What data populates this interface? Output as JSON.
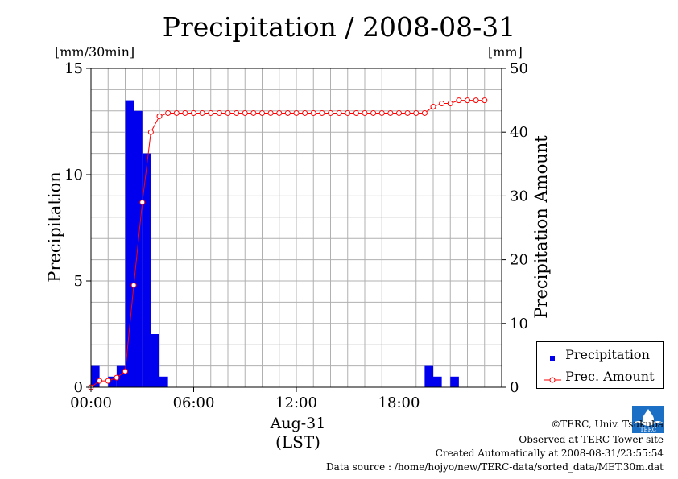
{
  "title": "Precipitation / 2008-08-31",
  "left_unit": "[mm/30min]",
  "right_unit": "[mm]",
  "left_axis_label": "Precipitation",
  "right_axis_label": "Precipitation Amount",
  "x_axis_label": "Aug-31",
  "x_axis_unit": "(LST)",
  "legend": {
    "precip": "Precipitation",
    "amount": "Prec. Amount"
  },
  "credits": {
    "org": "©TERC, Univ. Tsukuba",
    "site": "Observed at TERC Tower site",
    "created": "Created Automatically at 2008-08-31/23:55:54",
    "source": "Data source : /home/hojyo/new/TERC-data/sorted_data/MET.30m.dat"
  },
  "logo_text": "TERC",
  "colors": {
    "bar": "#0000ee",
    "line": "#ff0000",
    "grid": "#b0b0b0"
  },
  "chart_data": {
    "type": "bar",
    "x_unit": "half-hour index (0 = 00:00, 48 = 24:00)",
    "xlim": [
      0,
      48
    ],
    "x_ticks": [
      0,
      12,
      24,
      36
    ],
    "x_tick_labels": [
      "00:00",
      "06:00",
      "12:00",
      "18:00"
    ],
    "left_ylim": [
      0,
      15
    ],
    "left_yticks": [
      0,
      5,
      10,
      15
    ],
    "right_ylim": [
      0,
      50
    ],
    "right_yticks": [
      0,
      10,
      20,
      30,
      40,
      50
    ],
    "grid": true,
    "legend_position": "bottom-right",
    "series": [
      {
        "name": "Precipitation",
        "type": "bar",
        "axis": "left",
        "values": [
          1.0,
          0,
          0.5,
          1.0,
          13.5,
          13.0,
          11.0,
          2.5,
          0.5,
          0,
          0,
          0,
          0,
          0,
          0,
          0,
          0,
          0,
          0,
          0,
          0,
          0,
          0,
          0,
          0,
          0,
          0,
          0,
          0,
          0,
          0,
          0,
          0,
          0,
          0,
          0,
          0,
          0,
          0,
          1.0,
          0.5,
          0,
          0.5,
          0,
          0,
          0,
          0,
          0
        ]
      },
      {
        "name": "Prec. Amount",
        "type": "line",
        "axis": "right",
        "values": [
          0,
          1.0,
          1.0,
          1.5,
          2.5,
          16.0,
          29.0,
          40.0,
          42.5,
          43.0,
          43.0,
          43.0,
          43.0,
          43.0,
          43.0,
          43.0,
          43.0,
          43.0,
          43.0,
          43.0,
          43.0,
          43.0,
          43.0,
          43.0,
          43.0,
          43.0,
          43.0,
          43.0,
          43.0,
          43.0,
          43.0,
          43.0,
          43.0,
          43.0,
          43.0,
          43.0,
          43.0,
          43.0,
          43.0,
          43.0,
          44.0,
          44.5,
          44.5,
          45.0,
          45.0,
          45.0,
          45.0
        ]
      }
    ]
  }
}
